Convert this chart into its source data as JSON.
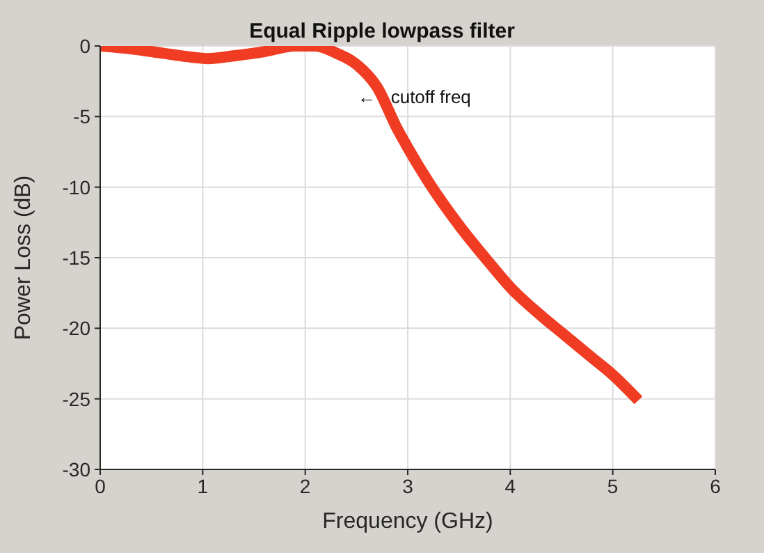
{
  "chart_data": {
    "type": "line",
    "title": "Equal Ripple lowpass filter",
    "xlabel": "Frequency (GHz)",
    "ylabel": "Power Loss (dB)",
    "x": [
      0,
      0.3,
      0.6,
      0.9,
      1.05,
      1.3,
      1.6,
      1.9,
      2.1,
      2.3,
      2.5,
      2.7,
      2.9,
      3.0,
      3.2,
      3.5,
      3.8,
      4.0,
      4.3,
      4.5,
      4.8,
      5.0,
      5.25
    ],
    "series": [
      {
        "color": "#f03c23",
        "values": [
          0,
          -0.2,
          -0.5,
          -0.8,
          -0.9,
          -0.7,
          -0.4,
          0,
          0,
          -0.5,
          -1.3,
          -2.9,
          -5.9,
          -7.2,
          -9.6,
          -12.7,
          -15.4,
          -17.1,
          -19.1,
          -20.3,
          -22.1,
          -23.3,
          -25.1
        ]
      }
    ],
    "xlim": [
      0,
      6
    ],
    "xticks": [
      0,
      1,
      2,
      3,
      4,
      5,
      6
    ],
    "ylim": [
      -30,
      0
    ],
    "yticks": [
      -30,
      -25,
      -20,
      -15,
      -10,
      -5,
      0
    ],
    "grid": true,
    "marker": "none",
    "line_style": "solid",
    "annotations": [
      "←   cutoff freq"
    ]
  }
}
